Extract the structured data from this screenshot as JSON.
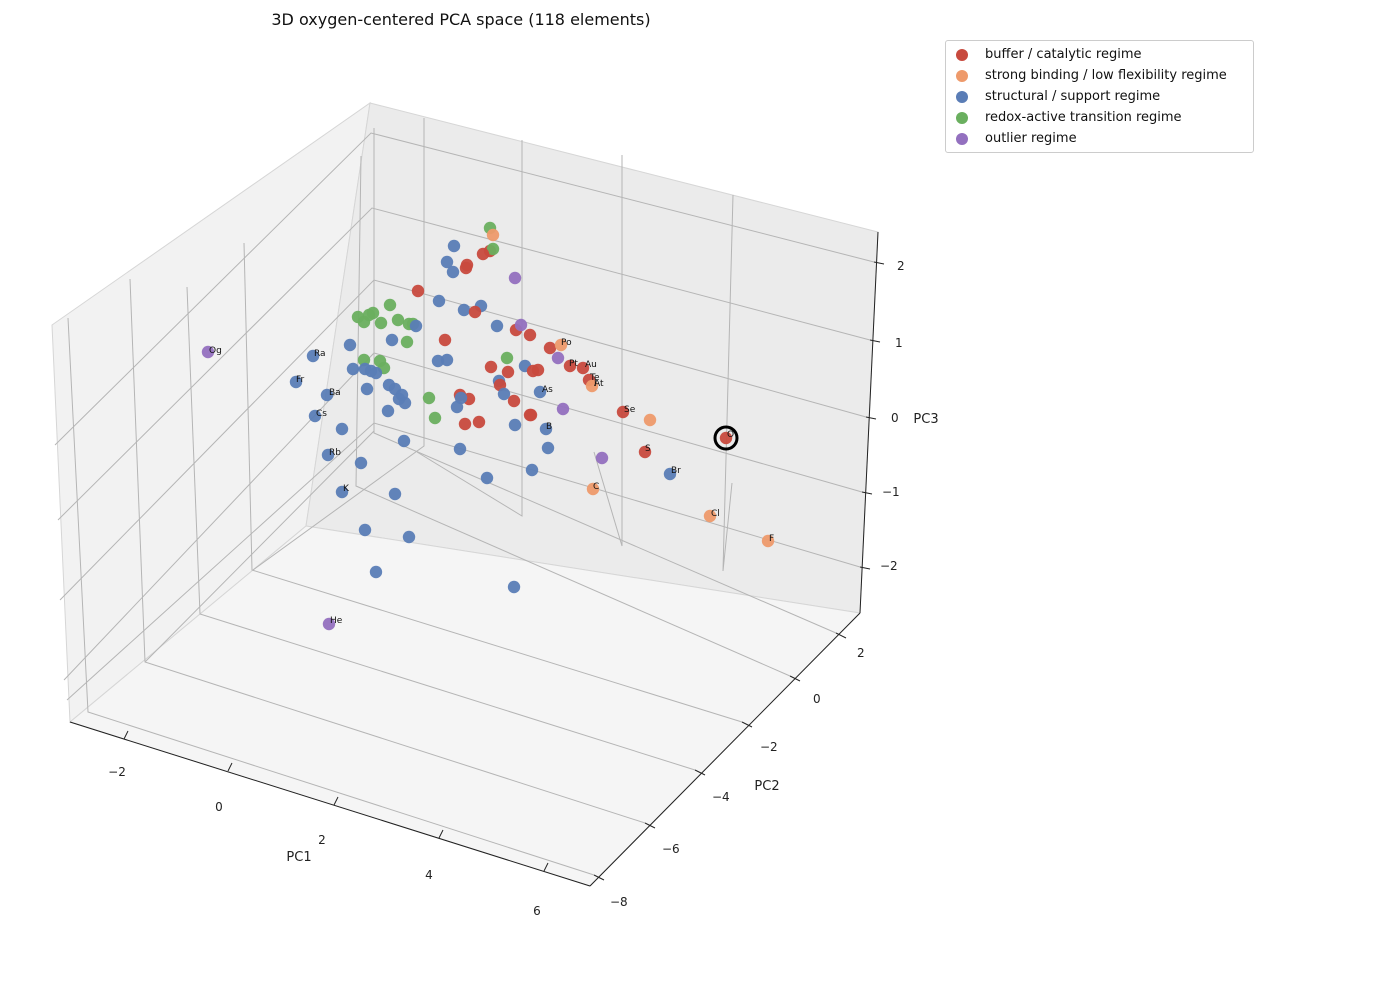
{
  "chart_data": {
    "type": "scatter",
    "title": "3D oxygen-centered PCA space (118 elements)",
    "xlabel": "PC1",
    "ylabel": "PC2",
    "zlabel": "PC3",
    "xticks": [
      "−2",
      "0",
      "2",
      "4",
      "6"
    ],
    "yticks": [
      "2",
      "0",
      "−2",
      "−4",
      "−6",
      "−8"
    ],
    "zticks": [
      "2",
      "1",
      "0",
      "−1",
      "−2"
    ],
    "grid": true,
    "legend_position": "top-right",
    "highlighted_label": "O",
    "series": [
      {
        "name": "buffer / catalytic regime",
        "color": "#c84a3e"
      },
      {
        "name": "strong binding / low flexibility regime",
        "color": "#ee9a6b"
      },
      {
        "name": "structural / support regime",
        "color": "#5a7db6"
      },
      {
        "name": "redox-active transition regime",
        "color": "#6aaf5f"
      },
      {
        "name": "outlier regime",
        "color": "#9370bf"
      }
    ],
    "point_labels": [
      "Og",
      "Ra",
      "Fr",
      "Ba",
      "Cs",
      "Rb",
      "K",
      "He",
      "Po",
      "Pt",
      "Au",
      "Te",
      "I",
      "As",
      "Se",
      "At",
      "B",
      "S",
      "Br",
      "C",
      "Cl",
      "F",
      "O"
    ]
  }
}
